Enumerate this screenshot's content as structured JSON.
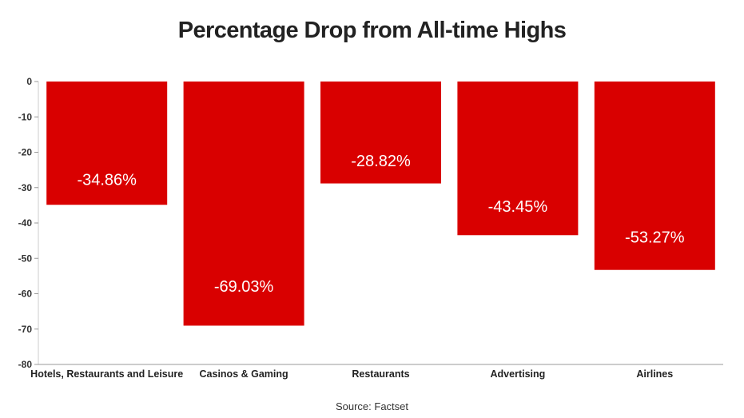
{
  "chart_data": {
    "type": "bar",
    "title": "Percentage Drop from All-time Highs",
    "source": "Source: Factset",
    "categories": [
      "Hotels, Restaurants and Leisure",
      "Casinos & Gaming",
      "Restaurants",
      "Advertising",
      "Airlines"
    ],
    "values": [
      -34.86,
      -69.03,
      -28.82,
      -43.45,
      -53.27
    ],
    "data_labels": [
      "-34.86%",
      "-69.03%",
      "-28.82%",
      "-43.45%",
      "-53.27%"
    ],
    "ylim": [
      -80,
      0
    ],
    "yticks": [
      0,
      -10,
      -20,
      -30,
      -40,
      -50,
      -60,
      -70,
      -80
    ],
    "bar_color": "#d90000",
    "grid": false,
    "legend": "none"
  }
}
